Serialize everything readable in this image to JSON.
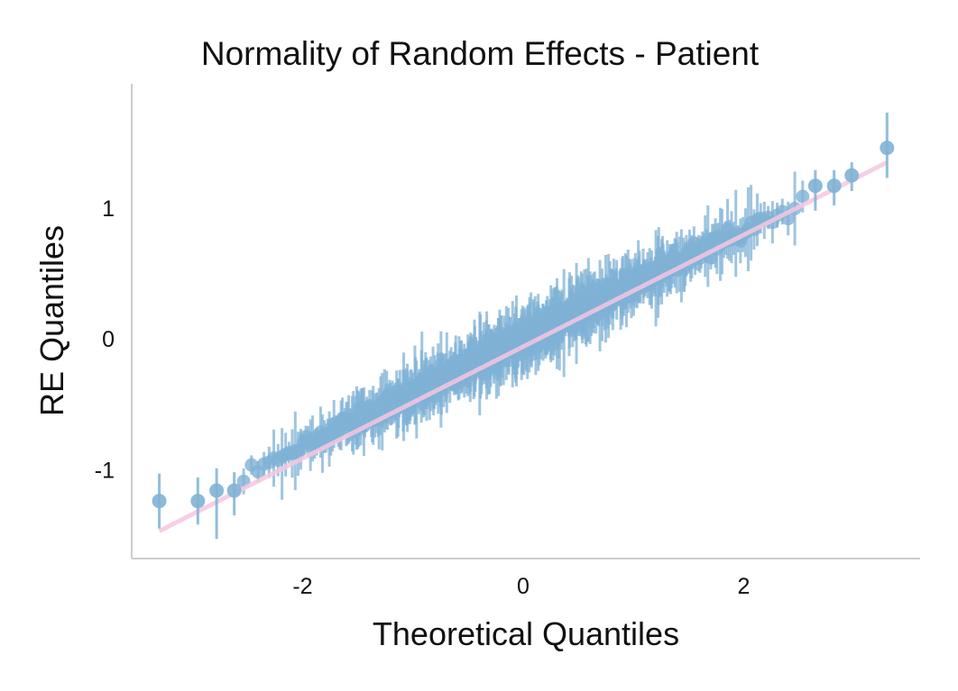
{
  "chart_data": {
    "type": "scatter",
    "title": "Normality of Random Effects - Patient",
    "xlabel": "Theoretical Quantiles",
    "ylabel": "RE Quantiles",
    "xlim": [
      -3.55,
      3.6
    ],
    "ylim": [
      -1.68,
      1.95
    ],
    "x_ticks": [
      -2,
      0,
      2
    ],
    "x_tick_labels": [
      "-2",
      "0",
      "2"
    ],
    "y_ticks": [
      -1,
      0,
      1
    ],
    "y_tick_labels": [
      "-1",
      "0",
      "1"
    ],
    "grid": false,
    "n_points": 800,
    "reference_line": {
      "slope": 0.415,
      "intercept": 0.0,
      "color": "#f7c6e0"
    },
    "point_color": "#7fb2d5",
    "errorbar_color": "#7fb2d5",
    "highlighted_points": [
      {
        "x": -3.3,
        "y": -1.24,
        "ylow": -1.45,
        "yhigh": -1.03
      },
      {
        "x": -2.95,
        "y": -1.24,
        "ylow": -1.42,
        "yhigh": -1.06
      },
      {
        "x": -2.78,
        "y": -1.16,
        "ylow": -1.53,
        "yhigh": -0.99
      },
      {
        "x": -2.62,
        "y": -1.16,
        "ylow": -1.35,
        "yhigh": -1.02
      },
      {
        "x": 2.65,
        "y": 1.17,
        "ylow": 0.98,
        "yhigh": 1.29
      },
      {
        "x": 2.82,
        "y": 1.17,
        "ylow": 1.02,
        "yhigh": 1.29
      },
      {
        "x": 2.98,
        "y": 1.25,
        "ylow": 1.13,
        "yhigh": 1.35
      },
      {
        "x": 3.3,
        "y": 1.46,
        "ylow": 1.23,
        "yhigh": 1.73
      }
    ]
  }
}
